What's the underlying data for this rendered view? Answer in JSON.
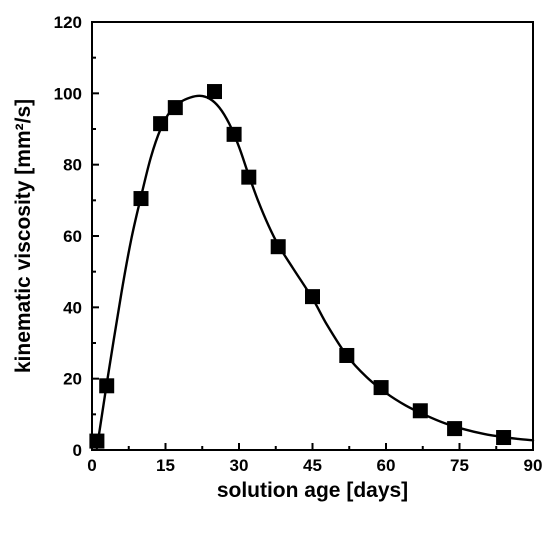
{
  "chart_data": {
    "type": "scatter",
    "title": "",
    "xlabel": "solution age [days]",
    "ylabel": "kinematic viscosity [mm²/s]",
    "xlim": [
      0,
      90
    ],
    "ylim": [
      0,
      120
    ],
    "x_ticks": [
      0,
      15,
      30,
      45,
      60,
      75,
      90
    ],
    "y_ticks": [
      0,
      20,
      40,
      60,
      80,
      100,
      120
    ],
    "grid": false,
    "legend": "none",
    "series": [
      {
        "name": "",
        "mode": "markers",
        "marker": "square",
        "color": "#000000",
        "points": [
          [
            1,
            2.5
          ],
          [
            3,
            18
          ],
          [
            10,
            70.5
          ],
          [
            14,
            91.5
          ],
          [
            17,
            96
          ],
          [
            25,
            100.5
          ],
          [
            29,
            88.5
          ],
          [
            32,
            76.5
          ],
          [
            38,
            57
          ],
          [
            45,
            43
          ],
          [
            52,
            26.5
          ],
          [
            59,
            17.5
          ],
          [
            67,
            11
          ],
          [
            74,
            6
          ],
          [
            84,
            3.5
          ]
        ]
      },
      {
        "name": "",
        "mode": "line",
        "color": "#000000",
        "points": [
          [
            1,
            0.5
          ],
          [
            3,
            18.5
          ],
          [
            6,
            44
          ],
          [
            8,
            59
          ],
          [
            10,
            71
          ],
          [
            12,
            82
          ],
          [
            14,
            90
          ],
          [
            16,
            95
          ],
          [
            18,
            97.5
          ],
          [
            20,
            98.8
          ],
          [
            22,
            99.3
          ],
          [
            24,
            98.5
          ],
          [
            26,
            96
          ],
          [
            28,
            91.5
          ],
          [
            30,
            85
          ],
          [
            32,
            77
          ],
          [
            34,
            69.5
          ],
          [
            36,
            63
          ],
          [
            38,
            57.5
          ],
          [
            41,
            51
          ],
          [
            45,
            42.5
          ],
          [
            48,
            35
          ],
          [
            52,
            26.5
          ],
          [
            56,
            20.5
          ],
          [
            60,
            16
          ],
          [
            64,
            12.5
          ],
          [
            68,
            9.8
          ],
          [
            72,
            7.5
          ],
          [
            76,
            5.8
          ],
          [
            80,
            4.5
          ],
          [
            84,
            3.6
          ],
          [
            87,
            3.1
          ],
          [
            90,
            2.7
          ]
        ]
      }
    ]
  }
}
